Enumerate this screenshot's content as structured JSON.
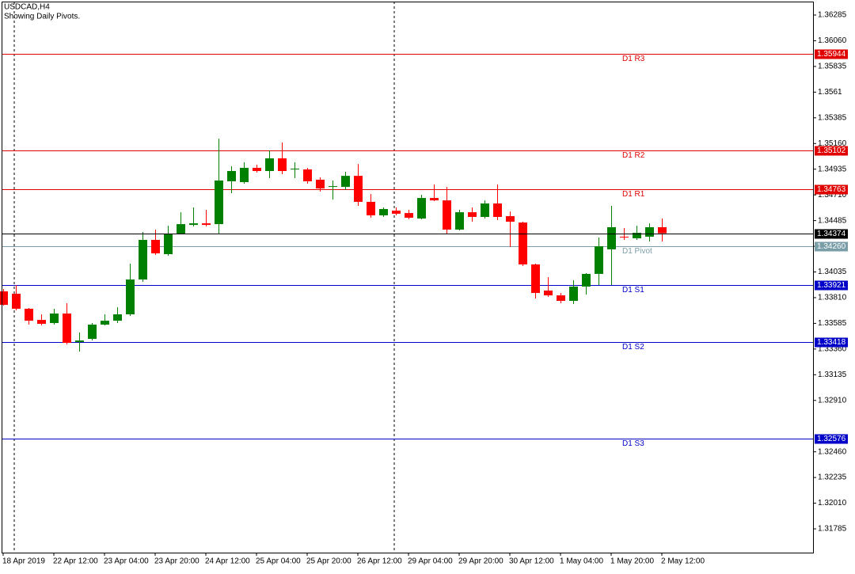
{
  "chart_data": {
    "type": "candlestick",
    "title": "USDCAD,H4",
    "subtitle": "Showing Daily Pivots.",
    "categories": [
      "18 Apr 2019",
      null,
      null,
      null,
      "22 Apr 12:00",
      null,
      null,
      null,
      "23 Apr 04:00",
      null,
      null,
      null,
      "23 Apr 20:00",
      null,
      null,
      null,
      "24 Apr 12:00",
      null,
      null,
      null,
      "25 Apr 04:00",
      null,
      null,
      null,
      "25 Apr 20:00",
      null,
      null,
      null,
      "26 Apr 12:00",
      null,
      null,
      null,
      "29 Apr 04:00",
      null,
      null,
      null,
      "29 Apr 20:00",
      null,
      null,
      null,
      "30 Apr 12:00",
      null,
      null,
      null,
      "1 May 04:00",
      null,
      null,
      null,
      "1 May 20:00",
      null,
      null,
      null,
      "2 May 12:00"
    ],
    "open": [
      1.33865,
      1.33844,
      1.33713,
      1.33615,
      1.33588,
      1.33671,
      1.33421,
      1.33449,
      1.33574,
      1.33608,
      1.33664,
      1.33969,
      1.34316,
      1.34191,
      1.34371,
      1.34447,
      1.34461,
      1.34454,
      1.34829,
      1.34822,
      1.34947,
      1.34919,
      1.3503,
      1.34933,
      1.34933,
      1.34843,
      1.3478,
      1.3478,
      1.34877,
      1.34649,
      1.34531,
      1.34572,
      1.34551,
      1.34503,
      1.34683,
      1.34662,
      1.34406,
      1.34558,
      1.34517,
      1.34635,
      1.34524,
      1.34468,
      1.34101,
      1.33872,
      1.3383,
      1.33782,
      1.33907,
      1.34018,
      1.34233,
      1.34344,
      1.3433,
      1.34344,
      1.34427
    ],
    "high": [
      1.33886,
      1.33921,
      1.3372,
      1.33664,
      1.33713,
      1.33761,
      1.33505,
      1.33588,
      1.33664,
      1.33726,
      1.34108,
      1.34385,
      1.34406,
      1.3444,
      1.34558,
      1.346,
      1.34579,
      1.35203,
      1.34961,
      1.34995,
      1.34975,
      1.35099,
      1.35169,
      1.34995,
      1.34947,
      1.34864,
      1.34836,
      1.34912,
      1.34981,
      1.34718,
      1.346,
      1.346,
      1.34579,
      1.34711,
      1.34801,
      1.3478,
      1.34579,
      1.346,
      1.34662,
      1.34801,
      1.34565,
      1.34475,
      1.34108,
      1.3399,
      1.33851,
      1.33962,
      1.34025,
      1.34337,
      1.34614,
      1.3442,
      1.3444,
      1.34461,
      1.34503
    ],
    "low": [
      1.3374,
      1.33699,
      1.33574,
      1.33567,
      1.33574,
      1.334,
      1.33338,
      1.33435,
      1.33567,
      1.33588,
      1.3365,
      1.33948,
      1.34184,
      1.34177,
      1.34364,
      1.34434,
      1.34434,
      1.34364,
      1.34725,
      1.34808,
      1.34905,
      1.34857,
      1.34891,
      1.34857,
      1.34808,
      1.34739,
      1.34669,
      1.34753,
      1.34614,
      1.3451,
      1.34517,
      1.34531,
      1.34496,
      1.34496,
      1.34656,
      1.34371,
      1.34399,
      1.34475,
      1.34503,
      1.34489,
      1.34253,
      1.34087,
      1.33803,
      1.33817,
      1.33761,
      1.33754,
      1.33837,
      1.33921,
      1.33921,
      1.34316,
      1.34316,
      1.34302,
      1.34302
    ],
    "close": [
      1.33747,
      1.33713,
      1.33608,
      1.33581,
      1.33671,
      1.33414,
      1.33435,
      1.33574,
      1.33608,
      1.33664,
      1.33969,
      1.34316,
      1.34198,
      1.34371,
      1.34454,
      1.34461,
      1.34447,
      1.34836,
      1.34919,
      1.34947,
      1.34919,
      1.3503,
      1.34919,
      1.3494,
      1.34829,
      1.34766,
      1.34787,
      1.34877,
      1.34649,
      1.34531,
      1.34586,
      1.34545,
      1.3451,
      1.34683,
      1.34662,
      1.34406,
      1.34558,
      1.34517,
      1.34635,
      1.34517,
      1.34475,
      1.34101,
      1.33851,
      1.3383,
      1.33782,
      1.33907,
      1.34018,
      1.3426,
      1.34427,
      1.34337,
      1.34378,
      1.34427,
      1.34374
    ],
    "up_color": "#008000",
    "down_color": "#ff0000",
    "ylim": [
      1.31577,
      1.36403
    ],
    "yticks": [
      1.36285,
      {
        "value": 1.3606,
        "label": "1.36060"
      },
      1.35835,
      1.3561,
      1.35385,
      {
        "value": 1.3516,
        "label": "1.35160"
      },
      1.34935,
      {
        "value": 1.3471,
        "label": "1.34710"
      },
      1.34485,
      {
        "value": 1.3426,
        "label": "1.34260"
      },
      1.34035,
      {
        "value": 1.3381,
        "label": "1.33810"
      },
      1.33585,
      {
        "value": 1.3336,
        "label": "1.33360"
      },
      1.33135,
      {
        "value": 1.3291,
        "label": "1.32910"
      },
      {
        "value": 1.3246,
        "label": "1.32460"
      },
      1.32235,
      {
        "value": 1.3201,
        "label": "1.32010"
      },
      1.31785
    ],
    "levels": [
      {
        "name": "D1 R3",
        "value": 1.35944,
        "color": "#e00000"
      },
      {
        "name": "D1 R2",
        "value": 1.35102,
        "color": "#e00000"
      },
      {
        "name": "D1 R1",
        "value": 1.34763,
        "color": "#e00000"
      },
      {
        "name": "D1 Pivot",
        "value": 1.3426,
        "value_label": "1.34260",
        "color": "#7a9ea8"
      },
      {
        "name": "D1 S1",
        "value": 1.33921,
        "color": "#0000c8"
      },
      {
        "name": "D1 S2",
        "value": 1.33418,
        "color": "#0000c8"
      },
      {
        "name": "D1 S3",
        "value": 1.32576,
        "color": "#0000c8"
      }
    ],
    "current_price": 1.34374,
    "current_color": "#000000"
  }
}
